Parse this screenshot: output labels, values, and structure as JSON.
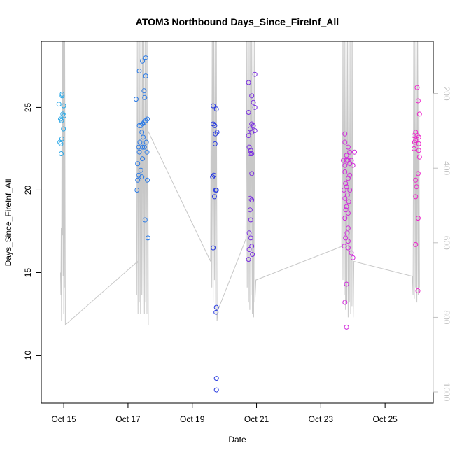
{
  "chart_data": {
    "type": "scatter",
    "title": "ATOM3 Northbound Days_Since_FireInf_All",
    "xlabel": "Date",
    "ylabel": "Days_Since_FireInf_All",
    "x_ticks": [
      "Oct 15",
      "Oct 17",
      "Oct 19",
      "Oct 21",
      "Oct 23",
      "Oct 25"
    ],
    "x_tick_values": [
      14.75,
      16.75,
      18.75,
      20.75,
      22.75,
      24.75
    ],
    "xlim": [
      14.05,
      26.25
    ],
    "y_ticks": [
      10,
      15,
      20,
      25
    ],
    "ylim": [
      7.1,
      29.0
    ],
    "right_axis": {
      "ticks": [
        200,
        400,
        600,
        800,
        1000
      ],
      "lim": [
        1030,
        60
      ],
      "color": "#c0c0c0"
    },
    "line_color": "#c8c8c8",
    "grid": false,
    "points": [
      {
        "x": 14.6,
        "y": 25.2,
        "c": "#2ca9e8"
      },
      {
        "x": 14.7,
        "y": 25.7,
        "c": "#2ca9e8"
      },
      {
        "x": 14.7,
        "y": 25.8,
        "c": "#2ca9e8"
      },
      {
        "x": 14.75,
        "y": 25.1,
        "c": "#2ca9e8"
      },
      {
        "x": 14.72,
        "y": 24.6,
        "c": "#2ca9e8"
      },
      {
        "x": 14.65,
        "y": 24.3,
        "c": "#2ca9e8"
      },
      {
        "x": 14.68,
        "y": 24.2,
        "c": "#2ca9e8"
      },
      {
        "x": 14.76,
        "y": 24.5,
        "c": "#2ca9e8"
      },
      {
        "x": 14.74,
        "y": 23.7,
        "c": "#2ca9e8"
      },
      {
        "x": 14.69,
        "y": 23.1,
        "c": "#2ca9e8"
      },
      {
        "x": 14.63,
        "y": 22.9,
        "c": "#2ca9e8"
      },
      {
        "x": 14.66,
        "y": 22.8,
        "c": "#2ca9e8"
      },
      {
        "x": 14.67,
        "y": 22.2,
        "c": "#2ca9e8"
      },
      {
        "x": 17.0,
        "y": 25.5,
        "c": "#2a7ae6"
      },
      {
        "x": 17.1,
        "y": 27.2,
        "c": "#2a7ae6"
      },
      {
        "x": 17.2,
        "y": 27.8,
        "c": "#2a7ae6"
      },
      {
        "x": 17.3,
        "y": 28.0,
        "c": "#2a7ae6"
      },
      {
        "x": 17.3,
        "y": 26.9,
        "c": "#2a7ae6"
      },
      {
        "x": 17.25,
        "y": 26.0,
        "c": "#2a7ae6"
      },
      {
        "x": 17.27,
        "y": 25.6,
        "c": "#2a7ae6"
      },
      {
        "x": 17.1,
        "y": 23.9,
        "c": "#2a7ae6"
      },
      {
        "x": 17.15,
        "y": 23.9,
        "c": "#2a7ae6"
      },
      {
        "x": 17.2,
        "y": 24.0,
        "c": "#2a7ae6"
      },
      {
        "x": 17.25,
        "y": 24.1,
        "c": "#2a7ae6"
      },
      {
        "x": 17.3,
        "y": 24.2,
        "c": "#2a7ae6"
      },
      {
        "x": 17.35,
        "y": 24.3,
        "c": "#2a7ae6"
      },
      {
        "x": 17.18,
        "y": 23.5,
        "c": "#2a7ae6"
      },
      {
        "x": 17.22,
        "y": 23.2,
        "c": "#2a7ae6"
      },
      {
        "x": 17.12,
        "y": 22.9,
        "c": "#2a7ae6"
      },
      {
        "x": 17.32,
        "y": 22.9,
        "c": "#2a7ae6"
      },
      {
        "x": 17.08,
        "y": 22.6,
        "c": "#2a7ae6"
      },
      {
        "x": 17.2,
        "y": 22.6,
        "c": "#2a7ae6"
      },
      {
        "x": 17.26,
        "y": 22.6,
        "c": "#2a7ae6"
      },
      {
        "x": 17.1,
        "y": 22.3,
        "c": "#2a7ae6"
      },
      {
        "x": 17.34,
        "y": 22.3,
        "c": "#2a7ae6"
      },
      {
        "x": 17.2,
        "y": 21.9,
        "c": "#2a7ae6"
      },
      {
        "x": 17.05,
        "y": 21.6,
        "c": "#2a7ae6"
      },
      {
        "x": 17.15,
        "y": 21.2,
        "c": "#2a7ae6"
      },
      {
        "x": 17.08,
        "y": 20.9,
        "c": "#2a7ae6"
      },
      {
        "x": 17.18,
        "y": 20.8,
        "c": "#2a7ae6"
      },
      {
        "x": 17.05,
        "y": 20.6,
        "c": "#2a7ae6"
      },
      {
        "x": 17.35,
        "y": 20.6,
        "c": "#2a7ae6"
      },
      {
        "x": 17.03,
        "y": 20.0,
        "c": "#2a7ae6"
      },
      {
        "x": 17.28,
        "y": 18.2,
        "c": "#2a7ae6"
      },
      {
        "x": 17.37,
        "y": 17.1,
        "c": "#2a7ae6"
      },
      {
        "x": 19.4,
        "y": 25.1,
        "c": "#2a3de0"
      },
      {
        "x": 19.5,
        "y": 24.9,
        "c": "#2a3de0"
      },
      {
        "x": 19.4,
        "y": 24.0,
        "c": "#2a3de0"
      },
      {
        "x": 19.45,
        "y": 23.9,
        "c": "#2a3de0"
      },
      {
        "x": 19.47,
        "y": 23.4,
        "c": "#2a3de0"
      },
      {
        "x": 19.52,
        "y": 23.5,
        "c": "#2a3de0"
      },
      {
        "x": 19.46,
        "y": 22.8,
        "c": "#2a3de0"
      },
      {
        "x": 19.38,
        "y": 20.8,
        "c": "#2a3de0"
      },
      {
        "x": 19.42,
        "y": 20.9,
        "c": "#2a3de0"
      },
      {
        "x": 19.48,
        "y": 20.0,
        "c": "#2a3de0"
      },
      {
        "x": 19.5,
        "y": 20.0,
        "c": "#2a3de0"
      },
      {
        "x": 19.44,
        "y": 19.6,
        "c": "#2a3de0"
      },
      {
        "x": 19.4,
        "y": 16.5,
        "c": "#2a3de0"
      },
      {
        "x": 19.5,
        "y": 12.9,
        "c": "#2a3de0"
      },
      {
        "x": 19.49,
        "y": 12.6,
        "c": "#2a3de0"
      },
      {
        "x": 19.5,
        "y": 8.6,
        "c": "#2a3de0"
      },
      {
        "x": 19.5,
        "y": 7.9,
        "c": "#2a3de0"
      },
      {
        "x": 20.5,
        "y": 26.5,
        "c": "#7a2ee0"
      },
      {
        "x": 20.7,
        "y": 27.0,
        "c": "#7a2ee0"
      },
      {
        "x": 20.6,
        "y": 25.7,
        "c": "#7a2ee0"
      },
      {
        "x": 20.65,
        "y": 25.3,
        "c": "#7a2ee0"
      },
      {
        "x": 20.7,
        "y": 25.0,
        "c": "#7a2ee0"
      },
      {
        "x": 20.5,
        "y": 24.7,
        "c": "#7a2ee0"
      },
      {
        "x": 20.6,
        "y": 24.0,
        "c": "#7a2ee0"
      },
      {
        "x": 20.65,
        "y": 23.9,
        "c": "#7a2ee0"
      },
      {
        "x": 20.7,
        "y": 23.6,
        "c": "#7a2ee0"
      },
      {
        "x": 20.55,
        "y": 23.7,
        "c": "#7a2ee0"
      },
      {
        "x": 20.5,
        "y": 23.3,
        "c": "#7a2ee0"
      },
      {
        "x": 20.6,
        "y": 23.5,
        "c": "#7a2ee0"
      },
      {
        "x": 20.52,
        "y": 22.6,
        "c": "#7a2ee0"
      },
      {
        "x": 20.57,
        "y": 22.4,
        "c": "#7a2ee0"
      },
      {
        "x": 20.55,
        "y": 22.2,
        "c": "#7a2ee0"
      },
      {
        "x": 20.6,
        "y": 22.2,
        "c": "#7a2ee0"
      },
      {
        "x": 20.6,
        "y": 21.0,
        "c": "#7a2ee0"
      },
      {
        "x": 20.55,
        "y": 19.5,
        "c": "#7a2ee0"
      },
      {
        "x": 20.6,
        "y": 19.4,
        "c": "#7a2ee0"
      },
      {
        "x": 20.55,
        "y": 18.8,
        "c": "#7a2ee0"
      },
      {
        "x": 20.57,
        "y": 18.2,
        "c": "#7a2ee0"
      },
      {
        "x": 20.52,
        "y": 17.4,
        "c": "#7a2ee0"
      },
      {
        "x": 20.57,
        "y": 17.1,
        "c": "#7a2ee0"
      },
      {
        "x": 20.6,
        "y": 16.6,
        "c": "#7a2ee0"
      },
      {
        "x": 20.52,
        "y": 16.4,
        "c": "#7a2ee0"
      },
      {
        "x": 20.62,
        "y": 16.1,
        "c": "#7a2ee0"
      },
      {
        "x": 20.5,
        "y": 15.8,
        "c": "#7a2ee0"
      },
      {
        "x": 23.5,
        "y": 23.4,
        "c": "#d22adc"
      },
      {
        "x": 23.5,
        "y": 22.9,
        "c": "#d22adc"
      },
      {
        "x": 23.6,
        "y": 22.6,
        "c": "#d22adc"
      },
      {
        "x": 23.65,
        "y": 22.3,
        "c": "#d22adc"
      },
      {
        "x": 23.8,
        "y": 22.3,
        "c": "#d22adc"
      },
      {
        "x": 23.55,
        "y": 22.1,
        "c": "#d22adc"
      },
      {
        "x": 23.45,
        "y": 21.8,
        "c": "#d22adc"
      },
      {
        "x": 23.55,
        "y": 21.8,
        "c": "#d22adc"
      },
      {
        "x": 23.6,
        "y": 21.8,
        "c": "#d22adc"
      },
      {
        "x": 23.7,
        "y": 21.8,
        "c": "#d22adc"
      },
      {
        "x": 23.65,
        "y": 21.6,
        "c": "#d22adc"
      },
      {
        "x": 23.75,
        "y": 21.5,
        "c": "#d22adc"
      },
      {
        "x": 23.5,
        "y": 21.5,
        "c": "#d22adc"
      },
      {
        "x": 23.5,
        "y": 21.1,
        "c": "#d22adc"
      },
      {
        "x": 23.65,
        "y": 20.9,
        "c": "#d22adc"
      },
      {
        "x": 23.6,
        "y": 20.7,
        "c": "#d22adc"
      },
      {
        "x": 23.52,
        "y": 20.4,
        "c": "#d22adc"
      },
      {
        "x": 23.55,
        "y": 20.2,
        "c": "#d22adc"
      },
      {
        "x": 23.47,
        "y": 20.0,
        "c": "#d22adc"
      },
      {
        "x": 23.65,
        "y": 20.0,
        "c": "#d22adc"
      },
      {
        "x": 23.58,
        "y": 19.7,
        "c": "#d22adc"
      },
      {
        "x": 23.5,
        "y": 19.5,
        "c": "#d22adc"
      },
      {
        "x": 23.62,
        "y": 19.3,
        "c": "#d22adc"
      },
      {
        "x": 23.55,
        "y": 19.0,
        "c": "#d22adc"
      },
      {
        "x": 23.53,
        "y": 18.8,
        "c": "#d22adc"
      },
      {
        "x": 23.6,
        "y": 18.6,
        "c": "#d22adc"
      },
      {
        "x": 23.5,
        "y": 18.3,
        "c": "#d22adc"
      },
      {
        "x": 23.6,
        "y": 17.7,
        "c": "#d22adc"
      },
      {
        "x": 23.57,
        "y": 17.4,
        "c": "#d22adc"
      },
      {
        "x": 23.52,
        "y": 17.1,
        "c": "#d22adc"
      },
      {
        "x": 23.6,
        "y": 16.9,
        "c": "#d22adc"
      },
      {
        "x": 23.48,
        "y": 16.6,
        "c": "#d22adc"
      },
      {
        "x": 23.6,
        "y": 16.5,
        "c": "#d22adc"
      },
      {
        "x": 23.7,
        "y": 16.2,
        "c": "#d22adc"
      },
      {
        "x": 23.75,
        "y": 15.9,
        "c": "#d22adc"
      },
      {
        "x": 23.55,
        "y": 14.3,
        "c": "#d22adc"
      },
      {
        "x": 23.5,
        "y": 13.2,
        "c": "#d22adc"
      },
      {
        "x": 23.55,
        "y": 11.7,
        "c": "#d22adc"
      },
      {
        "x": 25.65,
        "y": 23.3,
        "c": "#ee22cc"
      },
      {
        "x": 25.7,
        "y": 23.5,
        "c": "#ee22cc"
      },
      {
        "x": 25.75,
        "y": 23.3,
        "c": "#ee22cc"
      },
      {
        "x": 25.8,
        "y": 23.2,
        "c": "#ee22cc"
      },
      {
        "x": 25.67,
        "y": 22.9,
        "c": "#ee22cc"
      },
      {
        "x": 25.7,
        "y": 23.0,
        "c": "#ee22cc"
      },
      {
        "x": 25.65,
        "y": 22.5,
        "c": "#ee22cc"
      },
      {
        "x": 25.8,
        "y": 22.8,
        "c": "#ee22cc"
      },
      {
        "x": 25.8,
        "y": 22.4,
        "c": "#ee22cc"
      },
      {
        "x": 25.82,
        "y": 22.0,
        "c": "#ee22cc"
      },
      {
        "x": 25.75,
        "y": 26.2,
        "c": "#ee22cc"
      },
      {
        "x": 25.78,
        "y": 25.4,
        "c": "#ee22cc"
      },
      {
        "x": 25.82,
        "y": 24.6,
        "c": "#ee22cc"
      },
      {
        "x": 25.78,
        "y": 21.0,
        "c": "#ee22cc"
      },
      {
        "x": 25.7,
        "y": 20.6,
        "c": "#ee22cc"
      },
      {
        "x": 25.73,
        "y": 20.2,
        "c": "#ee22cc"
      },
      {
        "x": 25.7,
        "y": 19.6,
        "c": "#ee22cc"
      },
      {
        "x": 25.78,
        "y": 18.3,
        "c": "#ee22cc"
      },
      {
        "x": 25.7,
        "y": 16.7,
        "c": "#ee22cc"
      },
      {
        "x": 25.77,
        "y": 13.9,
        "c": "#ee22cc"
      }
    ],
    "line_points": [
      [
        14.65,
        680
      ],
      [
        14.66,
        740
      ],
      [
        14.67,
        560
      ],
      [
        14.68,
        810
      ],
      [
        14.7,
        60
      ],
      [
        14.71,
        580
      ],
      [
        14.72,
        60
      ],
      [
        14.73,
        690
      ],
      [
        14.74,
        60
      ],
      [
        14.75,
        790
      ],
      [
        14.76,
        60
      ],
      [
        14.77,
        720
      ],
      [
        14.78,
        60
      ],
      [
        14.8,
        820
      ],
      [
        17.05,
        650
      ],
      [
        17.0,
        660
      ],
      [
        17.02,
        740
      ],
      [
        17.04,
        60
      ],
      [
        17.06,
        790
      ],
      [
        17.08,
        60
      ],
      [
        17.1,
        760
      ],
      [
        17.12,
        60
      ],
      [
        17.14,
        790
      ],
      [
        17.16,
        60
      ],
      [
        17.18,
        740
      ],
      [
        17.2,
        60
      ],
      [
        17.22,
        770
      ],
      [
        17.24,
        60
      ],
      [
        17.26,
        790
      ],
      [
        17.28,
        60
      ],
      [
        17.3,
        760
      ],
      [
        17.32,
        60
      ],
      [
        17.34,
        790
      ],
      [
        17.36,
        60
      ],
      [
        17.38,
        820
      ],
      [
        17.37,
        300
      ],
      [
        19.32,
        650
      ],
      [
        19.34,
        60
      ],
      [
        19.36,
        720
      ],
      [
        19.38,
        60
      ],
      [
        19.4,
        760
      ],
      [
        19.42,
        60
      ],
      [
        19.44,
        700
      ],
      [
        19.46,
        60
      ],
      [
        19.48,
        790
      ],
      [
        19.5,
        60
      ],
      [
        19.52,
        810
      ],
      [
        19.55,
        780
      ],
      [
        20.42,
        590
      ],
      [
        20.44,
        60
      ],
      [
        20.46,
        720
      ],
      [
        20.48,
        60
      ],
      [
        20.5,
        760
      ],
      [
        20.52,
        60
      ],
      [
        20.54,
        780
      ],
      [
        20.56,
        60
      ],
      [
        20.58,
        740
      ],
      [
        20.6,
        60
      ],
      [
        20.62,
        790
      ],
      [
        20.64,
        60
      ],
      [
        20.66,
        800
      ],
      [
        20.68,
        60
      ],
      [
        20.7,
        760
      ],
      [
        20.72,
        720
      ],
      [
        20.73,
        700
      ],
      [
        23.4,
        610
      ],
      [
        23.42,
        60
      ],
      [
        23.44,
        700
      ],
      [
        23.46,
        60
      ],
      [
        23.48,
        740
      ],
      [
        23.5,
        60
      ],
      [
        23.52,
        780
      ],
      [
        23.54,
        60
      ],
      [
        23.56,
        760
      ],
      [
        23.58,
        60
      ],
      [
        23.6,
        800
      ],
      [
        23.62,
        60
      ],
      [
        23.64,
        760
      ],
      [
        23.66,
        60
      ],
      [
        23.68,
        790
      ],
      [
        23.7,
        60
      ],
      [
        23.72,
        770
      ],
      [
        23.74,
        60
      ],
      [
        23.76,
        800
      ],
      [
        23.78,
        650
      ],
      [
        25.6,
        690
      ],
      [
        25.62,
        740
      ],
      [
        25.64,
        60
      ],
      [
        25.66,
        750
      ],
      [
        25.68,
        60
      ],
      [
        25.7,
        720
      ],
      [
        25.72,
        60
      ],
      [
        25.74,
        760
      ],
      [
        25.76,
        60
      ],
      [
        25.78,
        740
      ],
      [
        25.8,
        60
      ],
      [
        25.82,
        720
      ]
    ]
  }
}
